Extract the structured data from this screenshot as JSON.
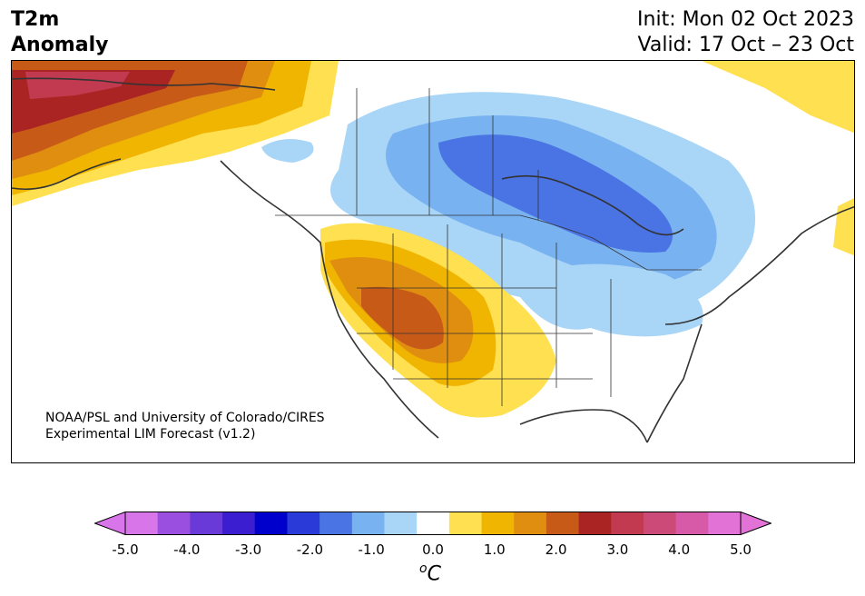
{
  "title": {
    "variable": "T2m",
    "subtitle": "Anomaly",
    "init": "Init: Mon 02 Oct 2023",
    "valid": "Valid: 17 Oct – 23 Oct"
  },
  "credit": {
    "line1": "NOAA/PSL and University of Colorado/CIRES",
    "line2": "Experimental LIM Forecast (v1.2)"
  },
  "colorbar": {
    "unit_base": "C",
    "unit_prefix": "o",
    "ticks": [
      "-5.0",
      "-4.0",
      "-3.0",
      "-2.0",
      "-1.0",
      "0.0",
      "1.0",
      "2.0",
      "3.0",
      "4.0",
      "5.0"
    ],
    "levels": [
      -5.0,
      -4.5,
      -4.0,
      -3.5,
      -3.0,
      -2.5,
      -2.0,
      -1.5,
      -1.0,
      -0.5,
      0.5,
      1.0,
      1.5,
      2.0,
      2.5,
      3.0,
      3.5,
      4.0,
      4.5,
      5.0
    ],
    "colors": [
      "#d875e8",
      "#9a4fe0",
      "#6a3ad8",
      "#3a1ecf",
      "#0000cd",
      "#2a3ad8",
      "#4a73e3",
      "#78b2f0",
      "#a9d6f7",
      "#ffffff",
      "#ffe050",
      "#f0b500",
      "#e08e10",
      "#c85a18",
      "#ab2424",
      "#c23a50",
      "#cc4a78",
      "#d65aa8",
      "#e272d6"
    ],
    "under_color": "#d875e8",
    "over_color": "#e272d6"
  },
  "map": {
    "region": "North America",
    "features": [
      {
        "name": "Alaska warm anomaly",
        "anomaly_max": 3.5
      },
      {
        "name": "Central Canada cold anomaly",
        "anomaly_min": -2.0
      },
      {
        "name": "US Southwest warm anomaly",
        "anomaly_max": 2.5
      },
      {
        "name": "Great Lakes / Northeast cool anomaly",
        "anomaly_min": -1.5
      },
      {
        "name": "Greenland / Labrador warm anomaly",
        "anomaly_max": 1.0
      }
    ]
  }
}
